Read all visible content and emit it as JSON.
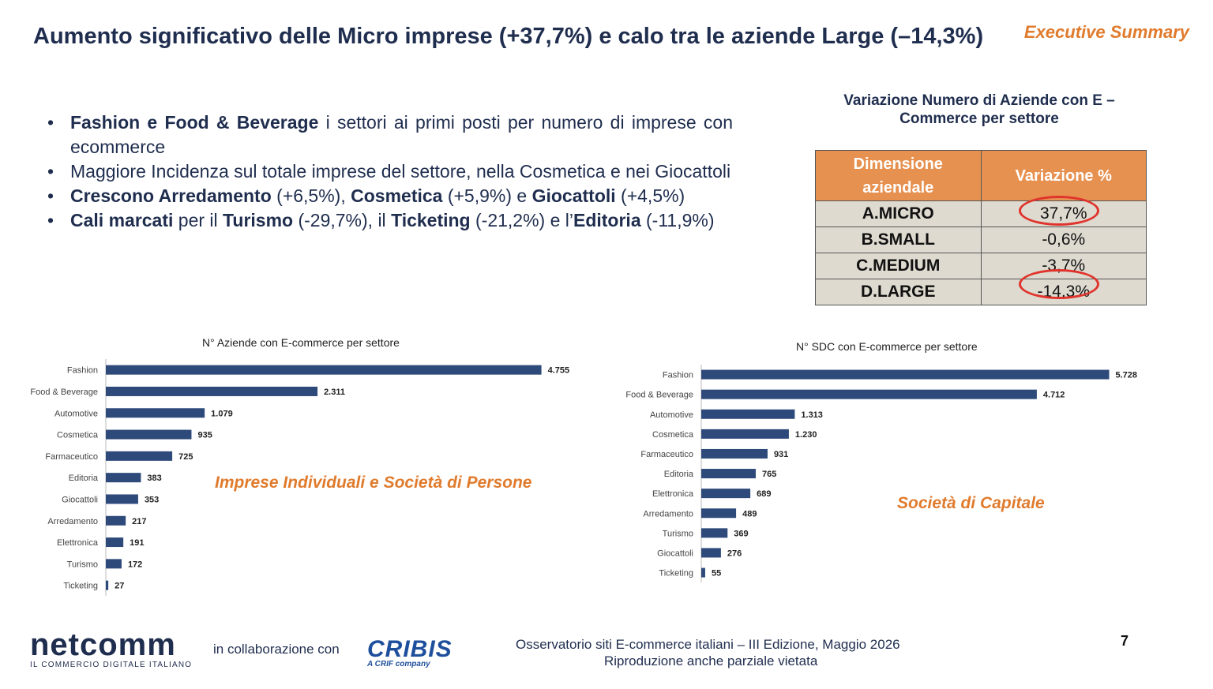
{
  "header": {
    "title": "Aumento significativo delle Micro imprese (+37,7%) e calo tra le aziende Large (–14,3%)",
    "tag": "Executive Summary"
  },
  "bullets": [
    [
      {
        "t": "Fashion e Food & Beverage",
        "b": true
      },
      {
        "t": " i settori ai primi posti per numero di imprese con ecommerce",
        "b": false
      }
    ],
    [
      {
        "t": "Maggiore Incidenza sul totale imprese del settore,  nella Cosmetica e nei Giocattoli",
        "b": false
      }
    ],
    [
      {
        "t": "Crescono Arredamento",
        "b": true
      },
      {
        "t": " (+6,5%), ",
        "b": false
      },
      {
        "t": "Cosmetica",
        "b": true
      },
      {
        "t": " (+5,9%) e ",
        "b": false
      },
      {
        "t": "Giocattoli",
        "b": true
      },
      {
        "t": " (+4,5%)",
        "b": false
      }
    ],
    [
      {
        "t": "Cali marcati",
        "b": true
      },
      {
        "t": " per il ",
        "b": false
      },
      {
        "t": "Turismo",
        "b": true
      },
      {
        "t": " (-29,7%), il ",
        "b": false
      },
      {
        "t": "Ticketing",
        "b": true
      },
      {
        "t": " (-21,2%) e l’",
        "b": false
      },
      {
        "t": "Editoria",
        "b": true
      },
      {
        "t": " (-11,9%)",
        "b": false
      }
    ]
  ],
  "table": {
    "title": "Variazione Numero di Aziende con E – Commerce per  settore",
    "headers": [
      "Dimensione aziendale",
      "Variazione %"
    ],
    "rows": [
      {
        "dim": "A.MICRO",
        "var": "37,7%",
        "highlight": true
      },
      {
        "dim": "B.SMALL",
        "var": "-0,6%",
        "highlight": false
      },
      {
        "dim": "C.MEDIUM",
        "var": "-3,7%",
        "highlight": false
      },
      {
        "dim": "D.LARGE",
        "var": "-14,3%",
        "highlight": true
      }
    ],
    "highlight_color": "#e0332b",
    "header_color": "#e69150"
  },
  "chart_data": [
    {
      "type": "bar",
      "orientation": "horizontal",
      "title": "N° Aziende con E-commerce per settore",
      "annotation": "Imprese Individuali e Società di Persone",
      "categories": [
        "Fashion",
        "Food & Beverage",
        "Automotive",
        "Cosmetica",
        "Farmaceutico",
        "Editoria",
        "Giocattoli",
        "Arredamento",
        "Elettronica",
        "Turismo",
        "Ticketing"
      ],
      "values": [
        4755,
        2311,
        1079,
        935,
        725,
        383,
        353,
        217,
        191,
        172,
        27
      ],
      "labels": [
        "4.755",
        "2.311",
        "1.079",
        "935",
        "725",
        "383",
        "353",
        "217",
        "191",
        "172",
        "27"
      ],
      "color": "#2e4a7a",
      "xlim": [
        0,
        5000
      ]
    },
    {
      "type": "bar",
      "orientation": "horizontal",
      "title": "N° SDC con E-commerce per settore",
      "annotation": "Società di Capitale",
      "categories": [
        "Fashion",
        "Food & Beverage",
        "Automotive",
        "Cosmetica",
        "Farmaceutico",
        "Editoria",
        "Elettronica",
        "Arredamento",
        "Turismo",
        "Giocattoli",
        "Ticketing"
      ],
      "values": [
        5728,
        4712,
        1313,
        1230,
        931,
        765,
        689,
        489,
        369,
        276,
        55
      ],
      "labels": [
        "5.728",
        "4.712",
        "1.313",
        "1.230",
        "931",
        "765",
        "689",
        "489",
        "369",
        "276",
        "55"
      ],
      "color": "#2e4a7a",
      "xlim": [
        0,
        5800
      ]
    }
  ],
  "footer": {
    "logo_main": "netcomm",
    "logo_sub": "IL COMMERCIO DIGITALE ITALIANO",
    "collab": "in collaborazione con",
    "partner": "CRIBIS",
    "partner_sub": "A CRIF company",
    "line1": "Osservatorio siti E-commerce italiani – III Edizione, Maggio 2026",
    "line2": "Riproduzione anche parziale vietata",
    "page": "7"
  }
}
